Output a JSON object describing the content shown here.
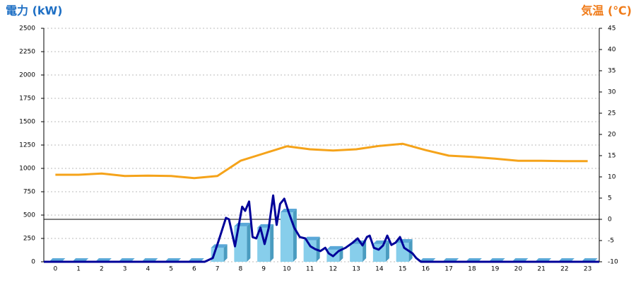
{
  "chart_data": {
    "type": "combo",
    "y_title": "電力 (kW)",
    "y2_title": "気温 (℃)",
    "categories": [
      "0",
      "1",
      "2",
      "3",
      "4",
      "5",
      "6",
      "7",
      "8",
      "9",
      "10",
      "11",
      "12",
      "13",
      "14",
      "15",
      "16",
      "17",
      "18",
      "19",
      "20",
      "21",
      "22",
      "23"
    ],
    "ylim": [
      0,
      2500
    ],
    "yticks": [
      0,
      250,
      500,
      750,
      1000,
      1250,
      1500,
      1750,
      2000,
      2250,
      2500
    ],
    "y2lim": [
      -10,
      45
    ],
    "y2ticks": [
      -10,
      -5,
      0,
      5,
      10,
      15,
      20,
      25,
      30,
      35,
      40,
      45
    ],
    "xlim": [
      -0.5,
      23.5
    ],
    "grid": true,
    "series": [
      {
        "type": "bar",
        "color": "#87ceeb",
        "values": [
          0,
          0,
          0,
          0,
          0,
          0,
          0,
          150,
          380,
          365,
          530,
          230,
          130,
          190,
          190,
          205,
          0,
          0,
          0,
          0,
          0,
          0,
          0,
          0
        ]
      },
      {
        "type": "line",
        "color": "#000099",
        "x": [
          -0.5,
          6.45,
          6.8,
          7.06,
          7.37,
          7.5,
          7.76,
          8.07,
          8.2,
          8.37,
          8.52,
          8.68,
          8.86,
          9.04,
          9.22,
          9.41,
          9.56,
          9.71,
          9.89,
          10.08,
          10.32,
          10.56,
          10.8,
          11.02,
          11.23,
          11.45,
          11.66,
          11.81,
          12.0,
          12.24,
          12.54,
          12.85,
          13.06,
          13.27,
          13.46,
          13.58,
          13.76,
          13.97,
          14.16,
          14.34,
          14.52,
          14.7,
          14.89,
          15.07,
          15.28,
          15.43,
          15.59,
          15.8,
          23.5
        ],
        "values": [
          0,
          0,
          40,
          230,
          470,
          455,
          165,
          590,
          545,
          645,
          265,
          250,
          365,
          190,
          365,
          710,
          395,
          620,
          675,
          530,
          365,
          265,
          250,
          165,
          135,
          115,
          150,
          90,
          60,
          115,
          150,
          205,
          250,
          175,
          265,
          280,
          150,
          130,
          175,
          280,
          180,
          205,
          265,
          150,
          115,
          90,
          40,
          0,
          0
        ]
      },
      {
        "type": "line",
        "axis": "y2",
        "color": "#f5a31a",
        "values": [
          10.5,
          10.5,
          10.8,
          10.2,
          10.3,
          10.2,
          9.7,
          10.2,
          13.8,
          15.5,
          17.2,
          16.5,
          16.2,
          16.5,
          17.3,
          17.8,
          16.3,
          15,
          14.7,
          14.3,
          13.8,
          13.8,
          13.7,
          13.7
        ]
      }
    ]
  }
}
